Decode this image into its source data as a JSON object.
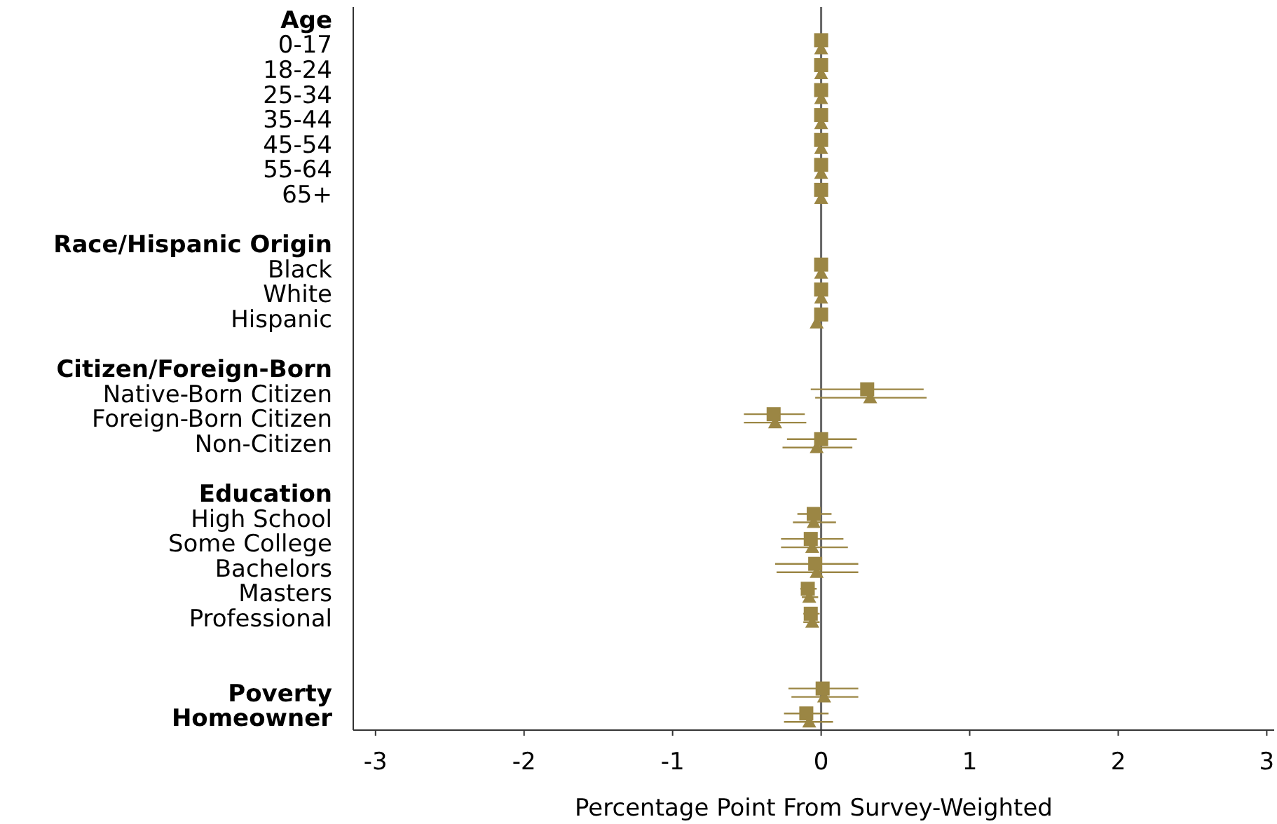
{
  "chart_data": {
    "type": "scatter",
    "orientation": "horizontal",
    "xlabel": "Percentage Point From Survey-Weighted",
    "categories": [
      "Age",
      "0-17",
      "18-24",
      "25-34",
      "35-44",
      "45-54",
      "55-64",
      "65+",
      null,
      "Race/Hispanic Origin",
      "Black",
      "White",
      "Hispanic",
      null,
      "Citizen/Foreign-Born",
      "Native-Born Citizen",
      "Foreign-Born Citizen",
      "Non-Citizen",
      null,
      "Education",
      "High School",
      "Some College",
      "Bachelors",
      "Masters",
      "Professional",
      null,
      null,
      "Poverty",
      "Homeowner"
    ],
    "series": [
      {
        "color": "#9b8644",
        "marker": "triangle",
        "values": [
          null,
          0,
          0,
          0,
          0,
          0,
          0,
          0,
          null,
          null,
          0,
          0,
          -0.03,
          null,
          null,
          0.33,
          -0.31,
          -0.03,
          null,
          null,
          -0.05,
          -0.06,
          -0.03,
          -0.08,
          -0.06,
          null,
          null,
          0.02,
          -0.08
        ],
        "errors": [
          null,
          null,
          null,
          null,
          null,
          null,
          null,
          null,
          null,
          null,
          null,
          null,
          null,
          null,
          null,
          [
            -0.04,
            0.71
          ],
          [
            -0.52,
            -0.1
          ],
          [
            -0.26,
            0.21
          ],
          null,
          null,
          [
            -0.19,
            0.1
          ],
          [
            -0.27,
            0.18
          ],
          [
            -0.3,
            0.25
          ],
          [
            -0.13,
            -0.02
          ],
          [
            -0.12,
            -0.01
          ],
          null,
          null,
          [
            -0.2,
            0.25
          ],
          [
            -0.25,
            0.08
          ]
        ]
      },
      {
        "color": "#9b8644",
        "marker": "square",
        "values": [
          null,
          0,
          0,
          0,
          0,
          0,
          0,
          0,
          null,
          null,
          0,
          0,
          0,
          null,
          null,
          0.31,
          -0.32,
          0,
          null,
          null,
          -0.05,
          -0.07,
          -0.04,
          -0.09,
          -0.07,
          null,
          null,
          0.01,
          -0.1
        ],
        "errors": [
          null,
          null,
          null,
          null,
          null,
          null,
          null,
          null,
          null,
          null,
          null,
          null,
          null,
          null,
          null,
          [
            -0.07,
            0.69
          ],
          [
            -0.52,
            -0.11
          ],
          [
            -0.23,
            0.24
          ],
          null,
          null,
          [
            -0.16,
            0.07
          ],
          [
            -0.27,
            0.15
          ],
          [
            -0.31,
            0.25
          ],
          [
            -0.14,
            -0.03
          ],
          [
            -0.12,
            -0.01
          ],
          null,
          null,
          [
            -0.22,
            0.25
          ],
          [
            -0.25,
            0.05
          ]
        ]
      }
    ],
    "xlim": [
      -3.15,
      3.05
    ],
    "xticks": [
      -3,
      -2,
      -1,
      0,
      1,
      2,
      3
    ],
    "ref_lines": [
      {
        "axis": "x",
        "value": 0,
        "color": "#666666"
      }
    ],
    "grid": false
  }
}
